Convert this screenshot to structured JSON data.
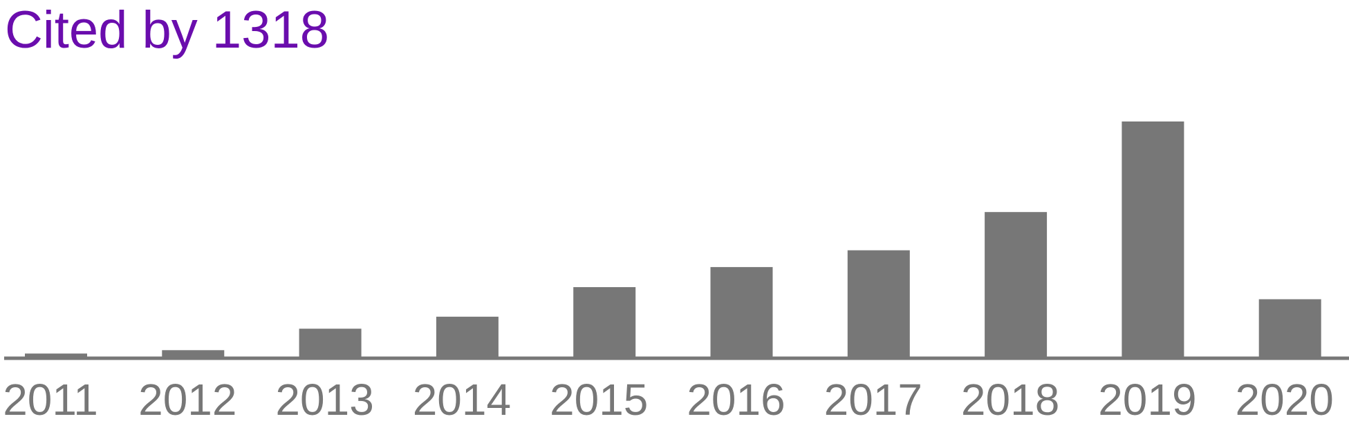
{
  "title": "Cited by 1318",
  "colors": {
    "title": "#6a0dad",
    "bars": "#777777",
    "axis": "#777777",
    "tick_labels": "#777777",
    "background": "#ffffff"
  },
  "chart_data": {
    "type": "bar",
    "title": "Cited by 1318",
    "xlabel": "",
    "ylabel": "",
    "categories": [
      "2011",
      "2012",
      "2013",
      "2014",
      "2015",
      "2016",
      "2017",
      "2018",
      "2019",
      "2020"
    ],
    "values": [
      7,
      12,
      44,
      62,
      106,
      136,
      161,
      218,
      353,
      88
    ],
    "ylim": [
      0,
      353
    ],
    "grid": false,
    "legend": "none"
  }
}
